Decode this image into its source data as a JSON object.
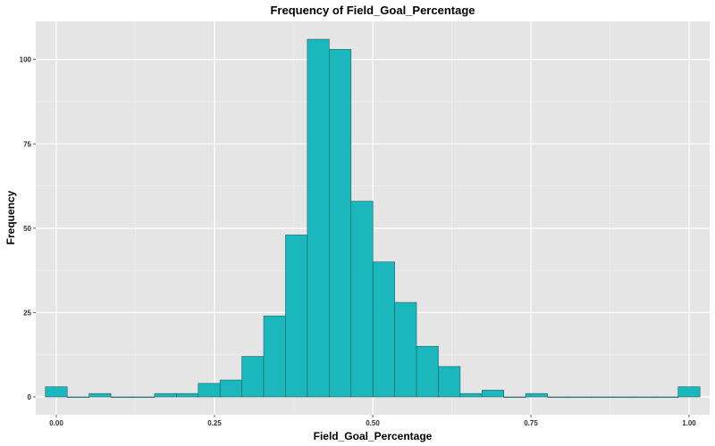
{
  "chart_data": {
    "type": "bar",
    "title": "Frequency of Field_Goal_Percentage",
    "xlabel": "Field_Goal_Percentage",
    "ylabel": "Frequency",
    "xlim": [
      -0.0325,
      1.0325
    ],
    "ylim": [
      -5.3,
      111.3
    ],
    "x_ticks": [
      {
        "value": 0.0,
        "label": "0.00"
      },
      {
        "value": 0.25,
        "label": "0.25"
      },
      {
        "value": 0.5,
        "label": "0.50"
      },
      {
        "value": 0.75,
        "label": "0.75"
      },
      {
        "value": 1.0,
        "label": "1.00"
      }
    ],
    "y_ticks": [
      {
        "value": 0,
        "label": "0"
      },
      {
        "value": 25,
        "label": "25"
      },
      {
        "value": 50,
        "label": "50"
      },
      {
        "value": 75,
        "label": "75"
      },
      {
        "value": 100,
        "label": "100"
      }
    ],
    "bin_width": 0.0345,
    "bin_centers": [
      0.0,
      0.0345,
      0.069,
      0.1035,
      0.138,
      0.1725,
      0.207,
      0.2415,
      0.276,
      0.3105,
      0.345,
      0.3795,
      0.414,
      0.4485,
      0.483,
      0.5175,
      0.552,
      0.5865,
      0.621,
      0.6555,
      0.69,
      0.7245,
      0.759,
      0.7935,
      0.828,
      0.8625,
      0.897,
      0.9315,
      0.966,
      1.0
    ],
    "values": [
      3,
      0,
      1,
      0,
      0,
      1,
      1,
      4,
      5,
      12,
      24,
      48,
      106,
      103,
      58,
      40,
      28,
      15,
      9,
      1,
      2,
      0,
      1,
      0,
      0,
      0,
      0,
      0,
      0,
      3
    ],
    "grid": true,
    "colors": {
      "bar_fill": "#1ab8bc",
      "bar_stroke": "#1f5f66",
      "panel_bg": "#e5e5e5",
      "grid_major": "#ffffff",
      "grid_minor": "#f0f0f0"
    }
  }
}
